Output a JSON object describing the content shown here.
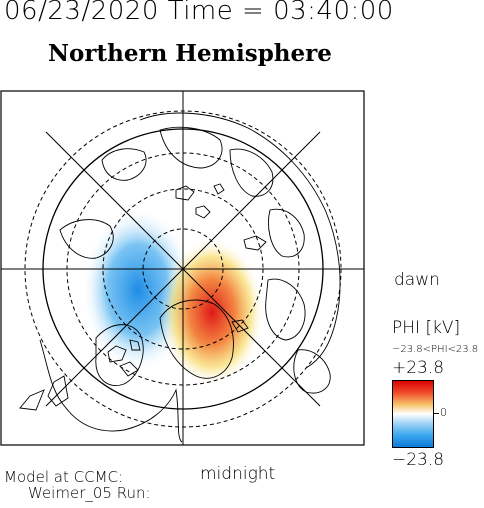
{
  "header": {
    "datetime_line": "06/23/2020 Time = 03:40:00",
    "title": "Northern Hemisphere"
  },
  "map": {
    "right_label": "dawn",
    "bottom_label": "midnight",
    "pole_region": "northern-polar-cap",
    "positive_color": "#e62020",
    "negative_color": "#1e8ce6"
  },
  "legend": {
    "quantity": "PHI [kV]",
    "range_text": "−23.8<PHI<23.8",
    "max_label": "+23.8",
    "zero_label": "0",
    "min_label": "−23.8",
    "max_value": 23.8,
    "min_value": -23.8
  },
  "footer": {
    "line1": "Model at CCMC:",
    "line2": "Weimer_05 Run:"
  }
}
